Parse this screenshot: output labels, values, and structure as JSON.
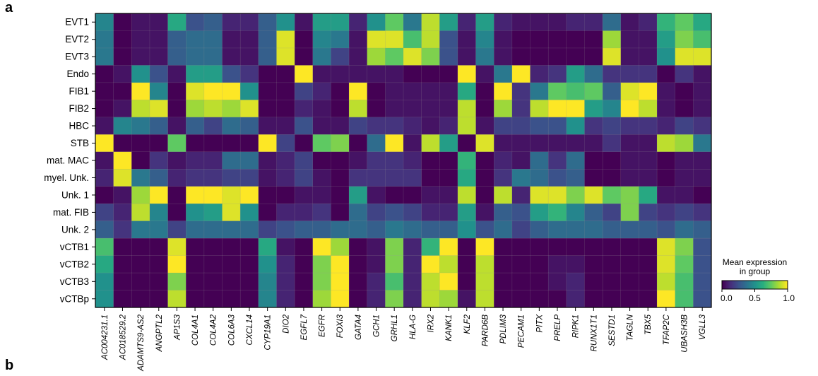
{
  "panel_labels": {
    "a": "a",
    "b": "b"
  },
  "chart_data": {
    "type": "heatmap",
    "rows": [
      "EVT1",
      "EVT2",
      "EVT3",
      "Endo",
      "FIB1",
      "FIB2",
      "HBC",
      "STB",
      "mat. MAC",
      "myel. Unk.",
      "Unk. 1",
      "mat. FIB",
      "Unk. 2",
      "vCTB1",
      "vCTB2",
      "vCTB3",
      "vCTBp"
    ],
    "columns": [
      "AC004231.1",
      "AC018529.2",
      "ADAMTS9-AS2",
      "ANGPTL2",
      "AP1S3",
      "COL4A1",
      "COL4A2",
      "COL6A3",
      "CXCL14",
      "CYP19A1",
      "DIO2",
      "EGFL7",
      "EGFR",
      "FOXI3",
      "GATA4",
      "GCH1",
      "GRHL1",
      "HLA-G",
      "IRX2",
      "KANK1",
      "KLF2",
      "PARD6B",
      "PDLIM3",
      "PECAM1",
      "PITX",
      "PRELP",
      "RIPK1",
      "RUNX1T1",
      "SESTD1",
      "TAGLN",
      "TBX5",
      "TFAP2C",
      "UBASH3B",
      "VGLL3"
    ],
    "values": [
      [
        0.45,
        0.0,
        0.05,
        0.05,
        0.6,
        0.25,
        0.3,
        0.1,
        0.1,
        0.3,
        0.5,
        0.05,
        0.55,
        0.55,
        0.1,
        0.5,
        0.75,
        0.4,
        0.9,
        0.55,
        0.1,
        0.55,
        0.1,
        0.05,
        0.05,
        0.05,
        0.1,
        0.1,
        0.35,
        0.05,
        0.1,
        0.65,
        0.75,
        0.6
      ],
      [
        0.4,
        0.0,
        0.05,
        0.05,
        0.3,
        0.35,
        0.35,
        0.05,
        0.05,
        0.3,
        0.95,
        0.0,
        0.45,
        0.4,
        0.05,
        0.95,
        0.95,
        0.7,
        0.9,
        0.25,
        0.05,
        0.45,
        0.05,
        0.0,
        0.0,
        0.0,
        0.0,
        0.0,
        0.85,
        0.05,
        0.05,
        0.55,
        0.8,
        0.7
      ],
      [
        0.4,
        0.0,
        0.05,
        0.05,
        0.3,
        0.35,
        0.35,
        0.05,
        0.05,
        0.3,
        0.95,
        0.0,
        0.4,
        0.2,
        0.05,
        0.85,
        0.75,
        0.95,
        0.8,
        0.25,
        0.05,
        0.4,
        0.05,
        0.0,
        0.0,
        0.0,
        0.0,
        0.0,
        0.95,
        0.05,
        0.05,
        0.5,
        0.95,
        0.95
      ],
      [
        0.0,
        0.05,
        0.5,
        0.25,
        0.05,
        0.55,
        0.55,
        0.25,
        0.15,
        0.0,
        0.0,
        1.0,
        0.05,
        0.05,
        0.05,
        0.05,
        0.05,
        0.0,
        0.0,
        0.0,
        1.0,
        0.05,
        0.4,
        1.0,
        0.1,
        0.15,
        0.55,
        0.35,
        0.15,
        0.15,
        0.15,
        0.0,
        0.15,
        0.05
      ],
      [
        0.0,
        0.0,
        1.0,
        0.45,
        0.0,
        0.95,
        1.0,
        1.0,
        0.5,
        0.0,
        0.0,
        0.2,
        0.1,
        0.0,
        1.0,
        0.0,
        0.05,
        0.05,
        0.05,
        0.05,
        0.6,
        0.0,
        1.0,
        0.15,
        0.4,
        0.75,
        0.7,
        0.75,
        0.3,
        0.95,
        1.0,
        0.05,
        0.0,
        0.05
      ],
      [
        0.0,
        0.05,
        0.9,
        0.95,
        0.0,
        0.85,
        0.9,
        0.85,
        0.95,
        0.0,
        0.0,
        0.1,
        0.05,
        0.0,
        0.9,
        0.0,
        0.05,
        0.05,
        0.05,
        0.05,
        0.9,
        0.0,
        0.85,
        0.15,
        0.9,
        1.0,
        1.0,
        0.55,
        0.45,
        1.0,
        0.9,
        0.05,
        0.0,
        0.05
      ],
      [
        0.05,
        0.45,
        0.4,
        0.3,
        0.05,
        0.3,
        0.2,
        0.35,
        0.3,
        0.05,
        0.05,
        0.25,
        0.05,
        0.05,
        0.2,
        0.15,
        0.15,
        0.1,
        0.05,
        0.1,
        0.9,
        0.05,
        0.2,
        0.2,
        0.25,
        0.25,
        0.5,
        0.15,
        0.2,
        0.15,
        0.15,
        0.1,
        0.2,
        0.15
      ],
      [
        1.0,
        0.0,
        0.0,
        0.0,
        0.75,
        0.0,
        0.0,
        0.0,
        0.0,
        1.0,
        0.2,
        0.0,
        0.75,
        0.8,
        0.0,
        0.35,
        1.0,
        0.05,
        0.9,
        0.55,
        0.0,
        0.95,
        0.05,
        0.05,
        0.05,
        0.05,
        0.05,
        0.05,
        0.15,
        0.05,
        0.05,
        0.9,
        0.85,
        0.4
      ],
      [
        0.05,
        1.0,
        0.0,
        0.15,
        0.05,
        0.1,
        0.1,
        0.35,
        0.35,
        0.05,
        0.1,
        0.2,
        0.0,
        0.0,
        0.05,
        0.15,
        0.15,
        0.1,
        0.0,
        0.0,
        0.65,
        0.0,
        0.1,
        0.05,
        0.35,
        0.15,
        0.35,
        0.0,
        0.0,
        0.05,
        0.05,
        0.0,
        0.05,
        0.05
      ],
      [
        0.1,
        0.95,
        0.4,
        0.3,
        0.1,
        0.15,
        0.15,
        0.2,
        0.2,
        0.05,
        0.1,
        0.2,
        0.05,
        0.0,
        0.15,
        0.15,
        0.15,
        0.15,
        0.0,
        0.0,
        0.6,
        0.0,
        0.15,
        0.4,
        0.35,
        0.25,
        0.3,
        0.0,
        0.0,
        0.05,
        0.05,
        0.0,
        0.05,
        0.05
      ],
      [
        0.0,
        0.05,
        0.85,
        1.0,
        0.0,
        1.0,
        1.0,
        0.95,
        1.0,
        0.0,
        0.0,
        0.05,
        0.05,
        0.0,
        0.55,
        0.05,
        0.0,
        0.0,
        0.05,
        0.05,
        0.9,
        0.0,
        0.9,
        0.1,
        0.95,
        0.95,
        0.8,
        0.95,
        0.75,
        0.8,
        0.6,
        0.05,
        0.05,
        0.0
      ],
      [
        0.2,
        0.1,
        0.9,
        0.45,
        0.0,
        0.5,
        0.55,
        0.95,
        0.5,
        0.0,
        0.1,
        0.1,
        0.15,
        0.0,
        0.35,
        0.2,
        0.25,
        0.2,
        0.1,
        0.1,
        0.55,
        0.05,
        0.3,
        0.25,
        0.55,
        0.65,
        0.45,
        0.3,
        0.2,
        0.8,
        0.2,
        0.15,
        0.2,
        0.15
      ],
      [
        0.3,
        0.15,
        0.4,
        0.4,
        0.2,
        0.35,
        0.35,
        0.35,
        0.35,
        0.2,
        0.25,
        0.3,
        0.3,
        0.35,
        0.35,
        0.3,
        0.4,
        0.35,
        0.3,
        0.3,
        0.5,
        0.25,
        0.35,
        0.2,
        0.3,
        0.35,
        0.35,
        0.35,
        0.3,
        0.3,
        0.3,
        0.25,
        0.35,
        0.3
      ],
      [
        0.7,
        0.0,
        0.0,
        0.0,
        0.95,
        0.0,
        0.0,
        0.0,
        0.0,
        0.6,
        0.05,
        0.0,
        1.0,
        0.85,
        0.0,
        0.05,
        0.8,
        0.1,
        0.65,
        1.0,
        0.0,
        1.0,
        0.0,
        0.0,
        0.0,
        0.0,
        0.0,
        0.0,
        0.0,
        0.0,
        0.0,
        0.95,
        0.8,
        0.25
      ],
      [
        0.6,
        0.0,
        0.0,
        0.0,
        1.0,
        0.0,
        0.0,
        0.0,
        0.0,
        0.5,
        0.1,
        0.0,
        0.8,
        1.0,
        0.0,
        0.05,
        0.8,
        0.1,
        1.0,
        0.9,
        0.0,
        0.9,
        0.0,
        0.0,
        0.0,
        0.05,
        0.05,
        0.0,
        0.0,
        0.0,
        0.0,
        0.95,
        0.75,
        0.25
      ],
      [
        0.5,
        0.0,
        0.0,
        0.0,
        0.8,
        0.0,
        0.0,
        0.0,
        0.0,
        0.45,
        0.1,
        0.0,
        0.8,
        1.0,
        0.0,
        0.1,
        0.7,
        0.1,
        0.9,
        1.0,
        0.0,
        0.9,
        0.0,
        0.0,
        0.0,
        0.05,
        0.1,
        0.0,
        0.0,
        0.0,
        0.0,
        0.9,
        0.7,
        0.25
      ],
      [
        0.5,
        0.0,
        0.0,
        0.0,
        0.9,
        0.0,
        0.0,
        0.0,
        0.0,
        0.45,
        0.1,
        0.0,
        0.85,
        1.0,
        0.0,
        0.1,
        0.8,
        0.1,
        0.9,
        0.85,
        0.05,
        0.9,
        0.0,
        0.0,
        0.0,
        0.0,
        0.1,
        0.0,
        0.0,
        0.0,
        0.0,
        1.0,
        0.7,
        0.25
      ]
    ],
    "colormap": "viridis",
    "colorbar": {
      "title": "Mean expression\nin group",
      "range": [
        0.0,
        1.0
      ],
      "ticks": [
        0.0,
        0.5,
        1.0
      ],
      "tick_labels": [
        "0.0",
        "0.5",
        "1.0"
      ]
    }
  }
}
